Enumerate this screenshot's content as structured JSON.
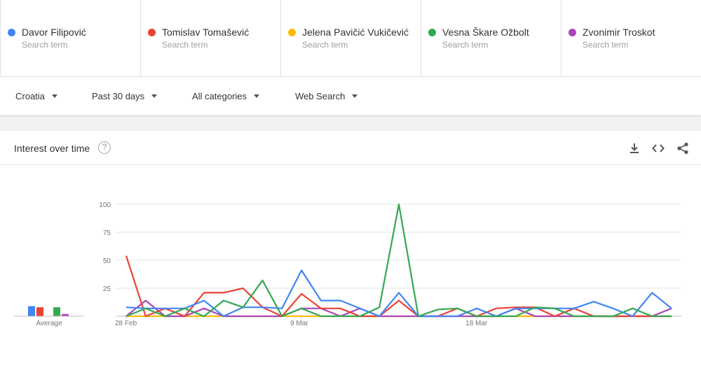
{
  "terms": [
    {
      "name": "Davor Filipović",
      "sub": "Search term",
      "color": "#4285f4"
    },
    {
      "name": "Tomislav Tomašević",
      "sub": "Search term",
      "color": "#ea4335"
    },
    {
      "name": "Jelena Pavičić Vukičević",
      "sub": "Search term",
      "color": "#fbbc04"
    },
    {
      "name": "Vesna Škare Ožbolt",
      "sub": "Search term",
      "color": "#34a853"
    },
    {
      "name": "Zvonimir Troskot",
      "sub": "Search term",
      "color": "#ab47bc"
    }
  ],
  "filters": {
    "region": "Croatia",
    "time": "Past 30 days",
    "category": "All categories",
    "property": "Web Search"
  },
  "card": {
    "title": "Interest over time",
    "help_icon": "?",
    "icons": [
      "download-icon",
      "embed-code-icon",
      "share-icon"
    ]
  },
  "chart_data": {
    "type": "line",
    "title": "Interest over time",
    "ylim": [
      0,
      100
    ],
    "yticks": [
      25,
      50,
      75,
      100
    ],
    "x_labels": [
      {
        "label": "28 Feb",
        "index": 0
      },
      {
        "label": "9 Mar",
        "index": 9
      },
      {
        "label": "18 Mar",
        "index": 18
      }
    ],
    "average_label": "Average",
    "series": [
      {
        "name": "Davor Filipović",
        "color": "#4285f4",
        "average": 9,
        "values": [
          8,
          7,
          7,
          7,
          14,
          0,
          8,
          8,
          7,
          41,
          14,
          14,
          7,
          0,
          21,
          0,
          0,
          0,
          7,
          0,
          7,
          7,
          7,
          7,
          13,
          7,
          0,
          21,
          7
        ]
      },
      {
        "name": "Tomislav Tomašević",
        "color": "#ea4335",
        "average": 8,
        "values": [
          54,
          0,
          7,
          0,
          21,
          21,
          25,
          8,
          0,
          20,
          7,
          7,
          0,
          0,
          14,
          0,
          0,
          7,
          0,
          7,
          8,
          8,
          0,
          7,
          0,
          0,
          0,
          0,
          0
        ]
      },
      {
        "name": "Jelena Pavičić Vukičević",
        "color": "#fbbc04",
        "average": 0,
        "values": [
          0,
          0,
          0,
          0,
          0,
          0,
          0,
          0,
          0,
          0,
          0,
          0,
          0,
          0,
          0,
          0,
          0,
          0,
          0,
          0,
          0,
          0,
          0,
          0,
          0,
          0,
          0,
          0,
          0
        ]
      },
      {
        "name": "Vesna Škare Ožbolt",
        "color": "#34a853",
        "average": 8,
        "values": [
          0,
          7,
          0,
          7,
          0,
          14,
          8,
          32,
          0,
          7,
          0,
          0,
          0,
          8,
          100,
          0,
          6,
          7,
          0,
          0,
          0,
          8,
          7,
          0,
          0,
          0,
          7,
          0,
          0
        ]
      },
      {
        "name": "Zvonimir Troskot",
        "color": "#ab47bc",
        "average": 2,
        "values": [
          0,
          14,
          0,
          0,
          7,
          0,
          0,
          0,
          0,
          7,
          7,
          0,
          7,
          0,
          0,
          0,
          0,
          0,
          0,
          0,
          7,
          0,
          0,
          0,
          0,
          0,
          0,
          0,
          7
        ]
      }
    ]
  }
}
